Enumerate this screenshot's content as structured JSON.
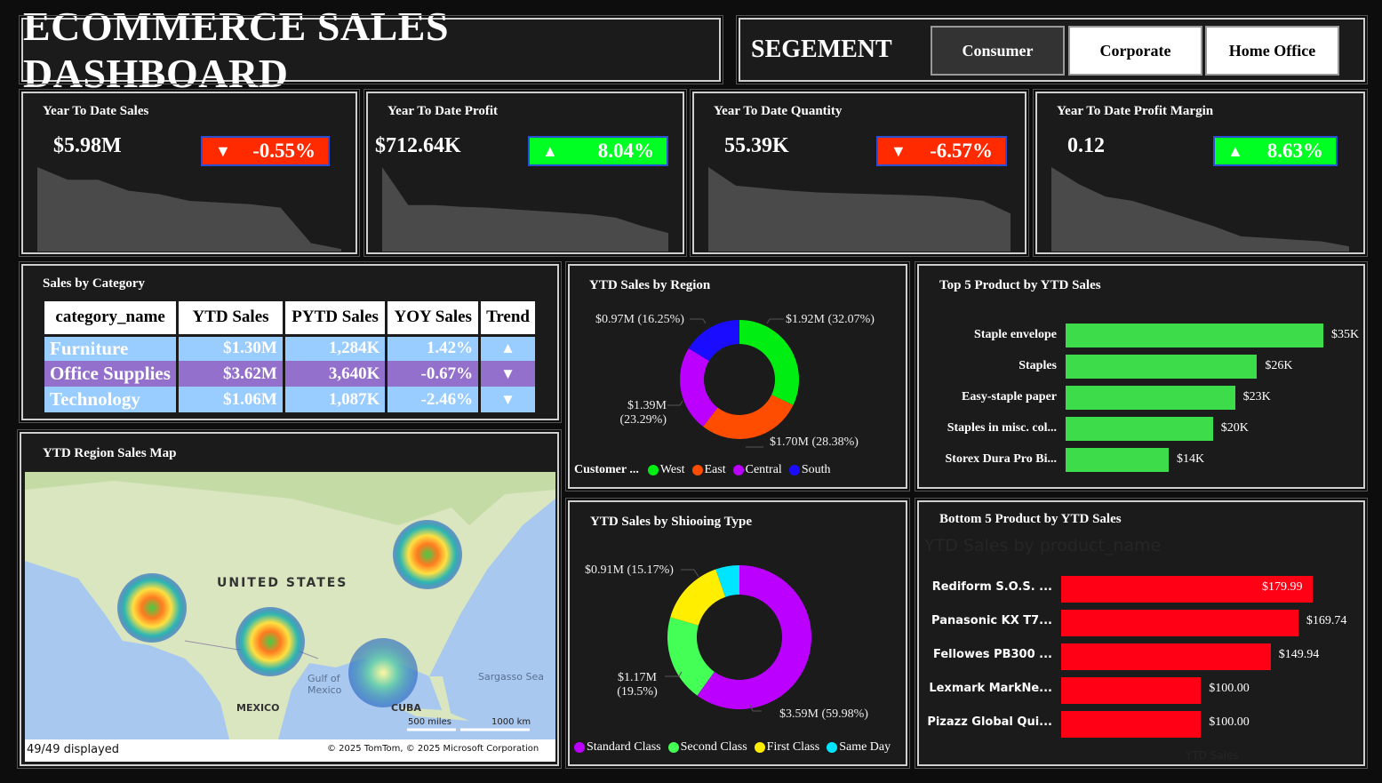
{
  "header": {
    "title": "ECOMMERCE SALES DASHBOARD"
  },
  "segment": {
    "label": "SEGEMENT",
    "options": [
      {
        "label": "Consumer",
        "selected": true
      },
      {
        "label": "Corporate",
        "selected": false
      },
      {
        "label": "Home Office",
        "selected": false
      }
    ]
  },
  "kpis": [
    {
      "title": "Year To Date Sales",
      "value": "$5.98M",
      "change": "-0.55%",
      "direction": "down",
      "badge_color": "#ff2a00",
      "trend": [
        100,
        85,
        85,
        72,
        68,
        60,
        58,
        56,
        52,
        10,
        3
      ]
    },
    {
      "title": "Year To Date Profit",
      "value": "$712.64K",
      "change": "8.04%",
      "direction": "up",
      "badge_color": "#00ff22",
      "trend": [
        100,
        55,
        55,
        53,
        52,
        50,
        48,
        46,
        44,
        40,
        30,
        22
      ]
    },
    {
      "title": "Year To Date Quantity",
      "value": "55.39K",
      "change": "-6.57%",
      "direction": "down",
      "badge_color": "#ff2a00",
      "trend": [
        100,
        78,
        75,
        72,
        70,
        69,
        68,
        67,
        66,
        64,
        60,
        45
      ]
    },
    {
      "title": "Year To Date Profit Margin",
      "value": "0.12",
      "change": "8.63%",
      "direction": "up",
      "badge_color": "#00ff22",
      "trend": [
        100,
        80,
        65,
        60,
        50,
        40,
        30,
        18,
        16,
        14,
        12,
        6
      ]
    }
  ],
  "category_table": {
    "title": "Sales by Category",
    "columns": [
      "category_name",
      "YTD Sales",
      "PYTD Sales",
      "YOY Sales",
      "Trend"
    ],
    "rows": [
      {
        "name": "Furniture",
        "ytd": "$1.30M",
        "pytd": "1,284K",
        "yoy": "1.42%",
        "trend": "▲",
        "color": "#99ccff"
      },
      {
        "name": "Office Supplies",
        "ytd": "$3.62M",
        "pytd": "3,640K",
        "yoy": "-0.67%",
        "trend": "▼",
        "color": "#9370cc"
      },
      {
        "name": "Technology",
        "ytd": "$1.06M",
        "pytd": "1,087K",
        "yoy": "-2.46%",
        "trend": "▼",
        "color": "#99ccff"
      }
    ]
  },
  "map": {
    "title": "YTD Region Sales Map",
    "labels": {
      "us": "UNITED STATES",
      "mexico": "MEXICO",
      "gulf": "Gulf of Mexico",
      "cuba": "CUBA",
      "sargasso": "Sargasso Sea",
      "scale_mi": "500 miles",
      "scale_km": "1000 km"
    },
    "footer": "49/49 displayed",
    "copyright": "© 2025 TomTom, © 2025 Microsoft Corporation"
  },
  "chart_data": [
    {
      "type": "pie",
      "title": "YTD Sales by Region",
      "legend_title": "Customer ...",
      "legend_position": "bottom",
      "slices": [
        {
          "name": "West",
          "value": 1.92,
          "percent": 32.07,
          "label": "$1.92M (32.07%)",
          "color": "#00ee11"
        },
        {
          "name": "East",
          "value": 1.7,
          "percent": 28.38,
          "label": "$1.70M (28.38%)",
          "color": "#ff4d00"
        },
        {
          "name": "Central",
          "value": 1.39,
          "percent": 23.29,
          "label": "$1.39M (23.29%)",
          "color": "#bb00ff"
        },
        {
          "name": "South",
          "value": 0.97,
          "percent": 16.25,
          "label": "$0.97M (16.25%)",
          "color": "#1a0dff"
        }
      ]
    },
    {
      "type": "bar",
      "title": "Top 5 Product by YTD Sales",
      "categories": [
        "Staple envelope",
        "Staples",
        "Easy-staple paper",
        "Staples in misc. col...",
        "Storex Dura Pro Bi..."
      ],
      "values": [
        35,
        26,
        23,
        20,
        14
      ],
      "labels": [
        "$35K",
        "$26K",
        "$23K",
        "$20K",
        "$14K"
      ],
      "color": "#3ddc4a",
      "unit": "K"
    },
    {
      "type": "pie",
      "title": "YTD Sales by Shiooing Type",
      "legend_position": "bottom",
      "slices": [
        {
          "name": "Standard Class",
          "value": 3.59,
          "percent": 59.98,
          "label": "$3.59M (59.98%)",
          "color": "#bb00ff"
        },
        {
          "name": "Second Class",
          "value": 1.17,
          "percent": 19.5,
          "label": "$1.17M (19.5%)",
          "color": "#44ff55"
        },
        {
          "name": "First Class",
          "value": 0.91,
          "percent": 15.17,
          "label": "$0.91M (15.17%)",
          "color": "#ffee00"
        },
        {
          "name": "Same Day",
          "percent": 5.35,
          "label": "",
          "color": "#00e5ff"
        }
      ]
    },
    {
      "type": "bar",
      "title": "Bottom 5 Product by YTD Sales",
      "ghost_title": "YTD Sales by product_name",
      "xlabel": "YTD Sales",
      "categories": [
        "Rediform S.O.S. ...",
        "Panasonic KX T7...",
        "Fellowes PB300 ...",
        "Lexmark MarkNe...",
        "Pizazz Global Qui..."
      ],
      "values": [
        179.99,
        169.74,
        149.94,
        100.0,
        100.0
      ],
      "labels": [
        "$179.99",
        "$169.74",
        "$149.94",
        "$100.00",
        "$100.00"
      ],
      "color": "#ff0015"
    }
  ]
}
